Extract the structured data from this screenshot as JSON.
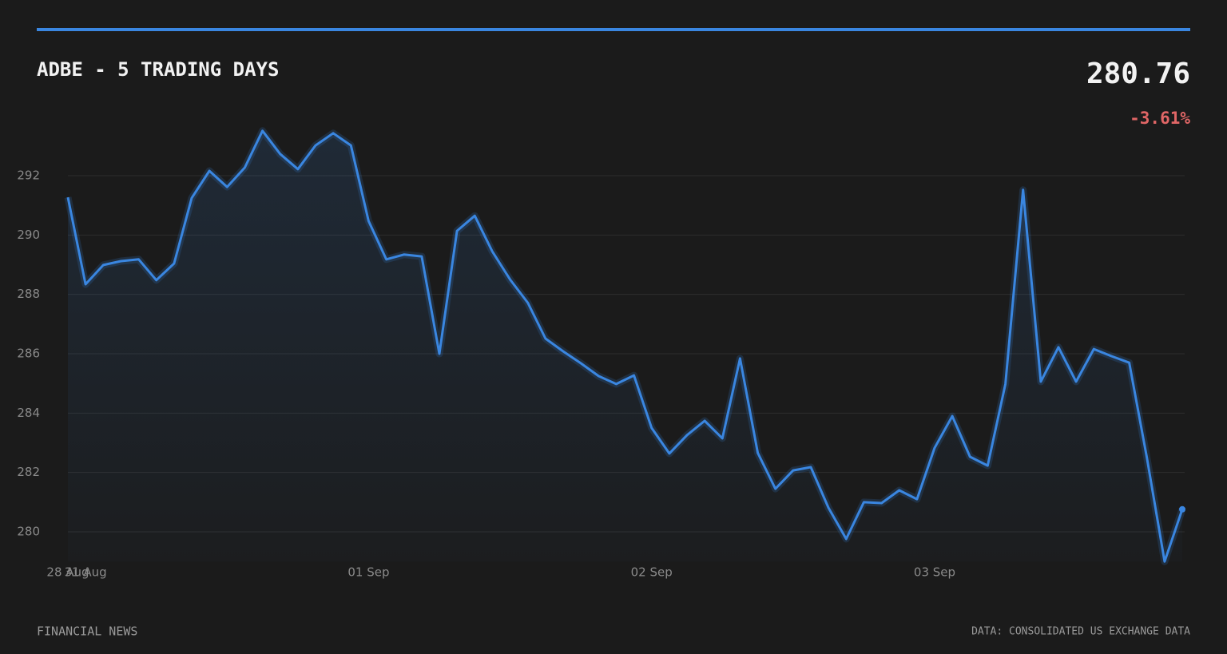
{
  "chart_data": {
    "type": "line",
    "title": "ADBE - 5 TRADING DAYS",
    "last_price": "280.76",
    "change": "-3.61%",
    "footer_left": "FINANCIAL NEWS",
    "footer_right": "DATA: CONSOLIDATED US EXCHANGE DATA",
    "categories": [
      "28 Aug",
      "31 Aug",
      null,
      null,
      null,
      null,
      null,
      null,
      null,
      null,
      null,
      null,
      null,
      null,
      null,
      null,
      null,
      "01 Sep",
      null,
      null,
      null,
      null,
      null,
      null,
      null,
      null,
      null,
      null,
      null,
      null,
      null,
      null,
      null,
      "02 Sep",
      null,
      null,
      null,
      null,
      null,
      null,
      null,
      null,
      null,
      null,
      null,
      null,
      null,
      null,
      null,
      "03 Sep",
      null,
      null,
      null,
      null,
      null,
      null,
      null,
      null,
      null,
      null,
      null,
      null,
      null,
      null
    ],
    "color": "#3a86e0",
    "values": [
      291.27,
      288.34,
      288.99,
      289.12,
      289.18,
      288.48,
      289.04,
      291.25,
      292.16,
      291.62,
      292.27,
      293.51,
      292.73,
      292.22,
      293.02,
      293.43,
      293.02,
      290.47,
      289.18,
      289.34,
      289.28,
      286.0,
      290.14,
      290.65,
      289.44,
      288.5,
      287.72,
      286.51,
      286.08,
      285.68,
      285.25,
      284.98,
      285.27,
      283.5,
      282.64,
      283.26,
      283.74,
      283.15,
      285.84,
      282.66,
      281.45,
      282.07,
      282.18,
      280.81,
      279.76,
      281.0,
      280.97,
      281.4,
      281.1,
      282.83,
      283.9,
      282.53,
      282.23,
      284.98,
      291.52,
      285.06,
      286.22,
      285.06,
      286.16,
      285.92,
      285.7,
      282.5,
      279.0,
      280.76
    ],
    "ylim": [
      279,
      293.6
    ],
    "yticks": [
      280,
      282,
      284,
      286,
      288,
      290,
      292
    ],
    "grid": true
  }
}
